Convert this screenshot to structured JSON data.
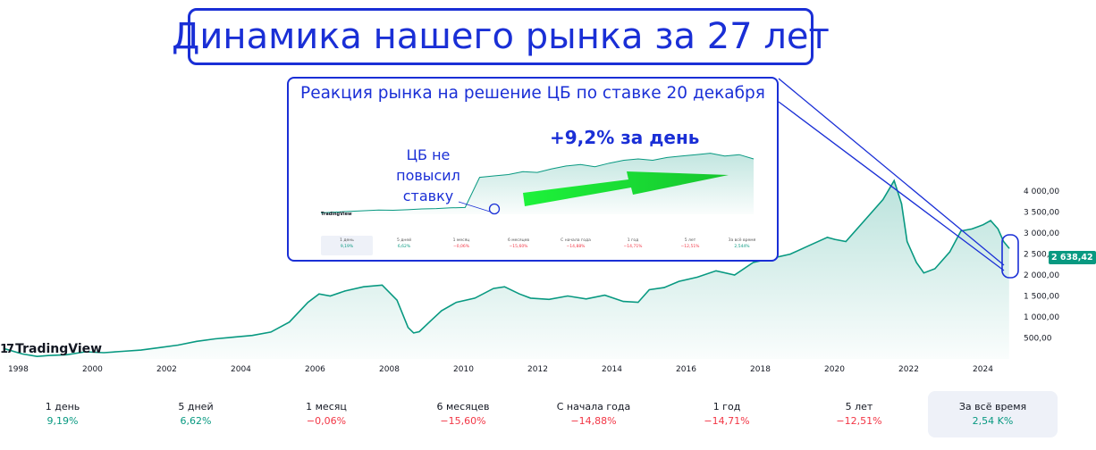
{
  "title": "Динамика нашего рынка за 27 лет",
  "inset": {
    "caption": "Реакция рынка на решение ЦБ по ставке 20 декабря",
    "headline": "+9,2% за день",
    "cb_note": [
      "ЦБ не",
      "повысил",
      "ставку"
    ],
    "stats": [
      {
        "label": "1 день",
        "value": "9,19%",
        "sign": "pos"
      },
      {
        "label": "5 дней",
        "value": "6,62%",
        "sign": "pos"
      },
      {
        "label": "1 месяц",
        "value": "−0,06%",
        "sign": "neg"
      },
      {
        "label": "6 месяцев",
        "value": "−15,60%",
        "sign": "neg"
      },
      {
        "label": "С начала года",
        "value": "−14,88%",
        "sign": "neg"
      },
      {
        "label": "1 год",
        "value": "−14,71%",
        "sign": "neg"
      },
      {
        "label": "5 лет",
        "value": "−12,51%",
        "sign": "neg"
      },
      {
        "label": "За всё время",
        "value": "2,544%",
        "sign": "pos"
      }
    ]
  },
  "brand": "TradingView",
  "last_value": "2 638,42",
  "stats": [
    {
      "label": "1 день",
      "value": "9,19%",
      "sign": "pos"
    },
    {
      "label": "5 дней",
      "value": "6,62%",
      "sign": "pos"
    },
    {
      "label": "1 месяц",
      "value": "−0,06%",
      "sign": "neg"
    },
    {
      "label": "6 месяцев",
      "value": "−15,60%",
      "sign": "neg"
    },
    {
      "label": "С начала года",
      "value": "−14,88%",
      "sign": "neg"
    },
    {
      "label": "1 год",
      "value": "−14,71%",
      "sign": "neg"
    },
    {
      "label": "5 лет",
      "value": "−12,51%",
      "sign": "neg"
    },
    {
      "label": "За всё время",
      "value": "2,54 K%",
      "sign": "pos"
    }
  ],
  "colors": {
    "line": "#089981",
    "annotation": "#1a2fd6",
    "arrow": "#1df23a",
    "negative": "#f23645"
  },
  "chart_data": {
    "type": "area",
    "title": "",
    "xlabel": "",
    "ylabel": "",
    "x_ticks": [
      "1998",
      "2000",
      "2002",
      "2004",
      "2006",
      "2008",
      "2010",
      "2012",
      "2014",
      "2016",
      "2018",
      "2020",
      "2022",
      "2024"
    ],
    "y_ticks": [
      "500,00",
      "1 000,00",
      "1 500,00",
      "2 000,00",
      "2 500,00",
      "3 000,00",
      "3 500,00",
      "4 000,00"
    ],
    "ylim": [
      0,
      4300
    ],
    "xlim": [
      1997.7,
      2025.0
    ],
    "series": [
      {
        "x": [
          1997.8,
          1998.3,
          1998.7,
          1999.0,
          1999.5,
          2000.0,
          2000.5,
          2001.0,
          2001.5,
          2002.0,
          2002.5,
          2003.0,
          2003.5,
          2004.0,
          2004.5,
          2005.0,
          2005.5,
          2006.0,
          2006.3,
          2006.6,
          2007.0,
          2007.5,
          2008.0,
          2008.4,
          2008.7,
          2008.85,
          2009.0,
          2009.3,
          2009.6,
          2010.0,
          2010.5,
          2011.0,
          2011.3,
          2011.7,
          2012.0,
          2012.5,
          2013.0,
          2013.5,
          2014.0,
          2014.5,
          2014.9,
          2015.2,
          2015.6,
          2016.0,
          2016.5,
          2017.0,
          2017.5,
          2018.0,
          2018.5,
          2019.0,
          2019.5,
          2020.0,
          2020.2,
          2020.5,
          2021.0,
          2021.5,
          2021.8,
          2022.0,
          2022.15,
          2022.4,
          2022.6,
          2022.9,
          2023.3,
          2023.6,
          2023.9,
          2024.2,
          2024.4,
          2024.6,
          2024.75,
          2024.9
        ],
        "y": [
          250,
          120,
          60,
          80,
          100,
          170,
          150,
          180,
          210,
          270,
          330,
          420,
          480,
          520,
          560,
          640,
          880,
          1350,
          1550,
          1500,
          1620,
          1720,
          1760,
          1400,
          750,
          620,
          650,
          900,
          1150,
          1350,
          1450,
          1680,
          1720,
          1550,
          1450,
          1420,
          1500,
          1430,
          1520,
          1370,
          1350,
          1650,
          1700,
          1850,
          1950,
          2100,
          2000,
          2300,
          2400,
          2500,
          2700,
          2900,
          2850,
          2800,
          3300,
          3800,
          4250,
          3700,
          2800,
          2300,
          2050,
          2150,
          2550,
          3050,
          3100,
          3200,
          3300,
          3100,
          2800,
          2640
        ]
      }
    ],
    "annotations": [
      "+9,2% за день",
      "ЦБ не повысил ставку"
    ]
  },
  "inset_chart": {
    "type": "area",
    "series": [
      {
        "x": [
          0,
          1,
          2,
          3,
          4,
          5,
          6,
          7,
          8,
          9,
          10,
          11,
          12,
          13,
          14,
          15,
          16,
          17,
          18,
          19,
          20,
          21,
          22,
          23,
          24,
          25,
          26,
          27,
          28,
          29,
          30
        ],
        "y": [
          2390,
          2395,
          2400,
          2405,
          2410,
          2408,
          2412,
          2418,
          2420,
          2425,
          2428,
          2640,
          2650,
          2660,
          2680,
          2675,
          2700,
          2720,
          2730,
          2715,
          2740,
          2760,
          2770,
          2760,
          2780,
          2790,
          2800,
          2810,
          2790,
          2800,
          2770
        ]
      }
    ]
  }
}
